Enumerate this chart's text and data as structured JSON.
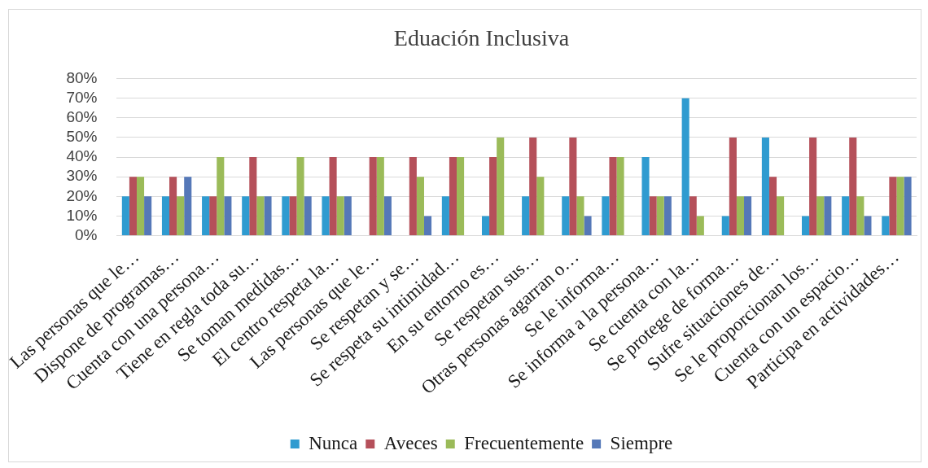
{
  "chart_data": {
    "type": "bar",
    "title": "Eduación Inclusiva",
    "categories": [
      "Las personas que le…",
      "Dispone de programas…",
      "Cuenta con una persona…",
      "Tiene en regla toda su…",
      "Se toman medidas…",
      "El centro respeta la…",
      "Las personas que le…",
      "Se respetan y se…",
      "Se respeta su intimidad…",
      "En su entorno es…",
      "Se respetan sus…",
      "Otras personas agarran o…",
      "Se le informa…",
      "Se informa a la persona…",
      "Se cuenta con la…",
      "Se protege de forma…",
      "Sufre situaciones de…",
      "Se le proporcionan los…",
      "Cuenta con un espacio…",
      "Participa en actividades…"
    ],
    "series": [
      {
        "name": "Nunca",
        "color": "#2f9bd0",
        "values": [
          20,
          20,
          20,
          20,
          20,
          20,
          0,
          0,
          20,
          10,
          20,
          20,
          20,
          40,
          70,
          10,
          50,
          10,
          20,
          10
        ]
      },
      {
        "name": "Aveces",
        "color": "#b5505a",
        "values": [
          30,
          30,
          20,
          40,
          20,
          40,
          40,
          40,
          40,
          40,
          50,
          50,
          40,
          20,
          20,
          50,
          30,
          50,
          50,
          30
        ]
      },
      {
        "name": "Frecuentemente",
        "color": "#9bbb59",
        "values": [
          30,
          20,
          40,
          20,
          40,
          20,
          40,
          30,
          40,
          50,
          30,
          20,
          40,
          20,
          10,
          20,
          20,
          20,
          20,
          30
        ]
      },
      {
        "name": "Siempre",
        "color": "#5578b8",
        "values": [
          20,
          30,
          20,
          20,
          20,
          20,
          20,
          10,
          0,
          0,
          0,
          10,
          0,
          20,
          0,
          20,
          0,
          20,
          10,
          30
        ]
      }
    ],
    "ylim": [
      0,
      80
    ],
    "yticks": [
      {
        "value": 0,
        "label": "0%"
      },
      {
        "value": 10,
        "label": "10%"
      },
      {
        "value": 20,
        "label": "20%"
      },
      {
        "value": 30,
        "label": "30%"
      },
      {
        "value": 40,
        "label": "40%"
      },
      {
        "value": 50,
        "label": "50%"
      },
      {
        "value": 60,
        "label": "60%"
      },
      {
        "value": 70,
        "label": "70%"
      },
      {
        "value": 80,
        "label": "80%"
      }
    ],
    "grid": "y",
    "legend": "bottom"
  }
}
